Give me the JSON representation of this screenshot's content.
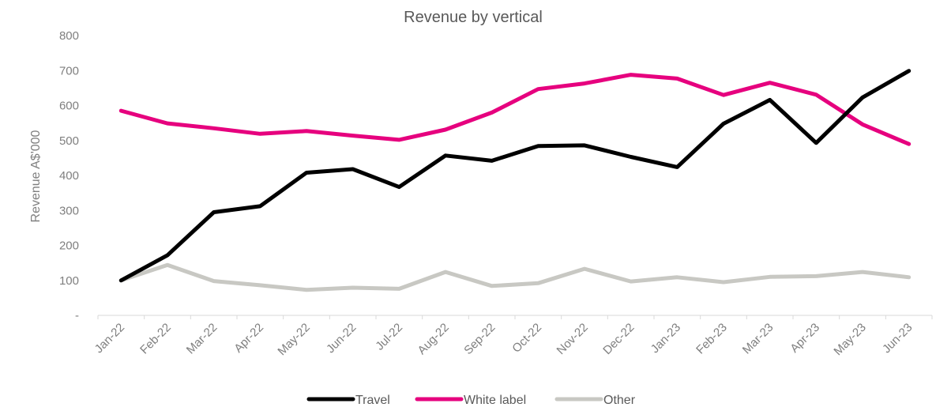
{
  "chart_data": {
    "type": "line",
    "title": "Revenue by vertical",
    "xlabel": "",
    "ylabel": "Revenue A$'000",
    "ylim": [
      0,
      800
    ],
    "yticks": [
      0,
      100,
      200,
      300,
      400,
      500,
      600,
      700,
      800
    ],
    "ytick_labels": [
      "-",
      "100",
      "200",
      "300",
      "400",
      "500",
      "600",
      "700",
      "800"
    ],
    "grid": false,
    "legend_position": "bottom",
    "categories": [
      "Jan-22",
      "Feb-22",
      "Mar-22",
      "Apr-22",
      "May-22",
      "Jun-22",
      "Jul-22",
      "Aug-22",
      "Sep-22",
      "Oct-22",
      "Nov-22",
      "Dec-22",
      "Jan-23",
      "Feb-23",
      "Mar-23",
      "Apr-23",
      "May-23",
      "Jun-23"
    ],
    "series": [
      {
        "name": "Travel",
        "color": "#000000",
        "values": [
          100,
          172,
          295,
          312,
          408,
          418,
          367,
          457,
          442,
          484,
          486,
          453,
          424,
          548,
          616,
          493,
          623,
          699
        ]
      },
      {
        "name": "White label",
        "color": "#e6007e",
        "values": [
          585,
          549,
          535,
          519,
          527,
          514,
          502,
          531,
          580,
          647,
          663,
          688,
          677,
          630,
          665,
          631,
          546,
          490
        ]
      },
      {
        "name": "Other",
        "color": "#c8c8c3",
        "values": [
          100,
          144,
          98,
          86,
          73,
          79,
          76,
          124,
          84,
          92,
          133,
          97,
          109,
          95,
          110,
          112,
          124,
          109
        ]
      }
    ]
  }
}
